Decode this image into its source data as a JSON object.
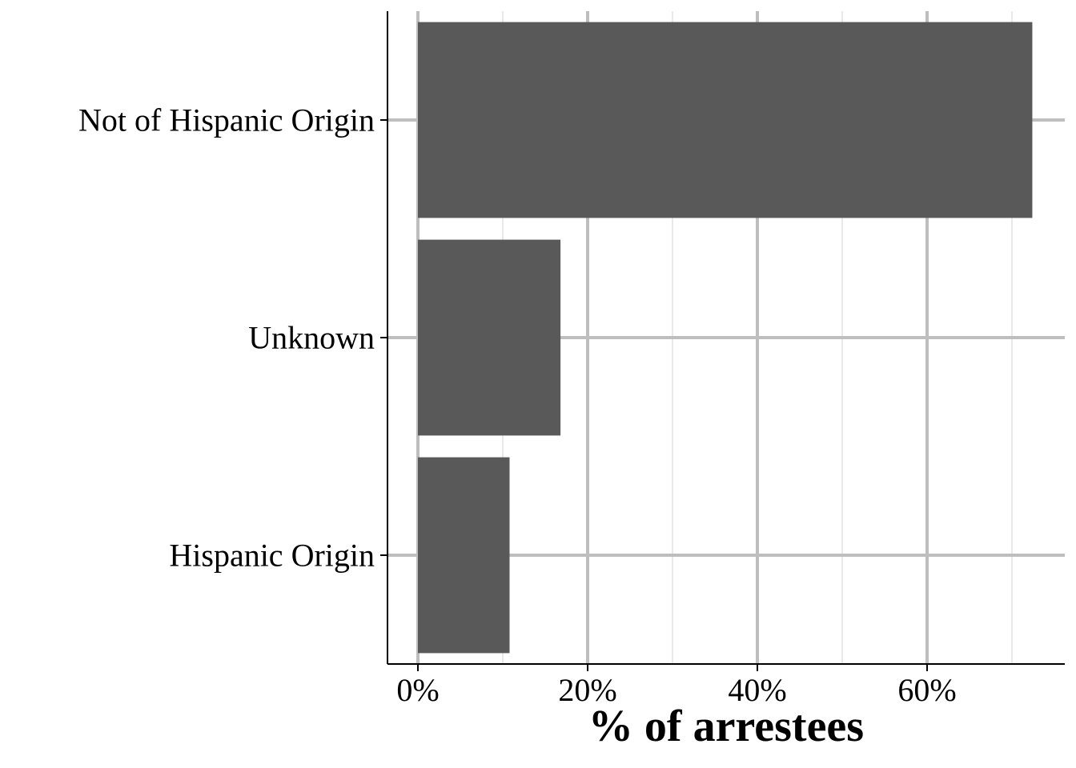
{
  "chart_data": {
    "type": "bar",
    "orientation": "horizontal",
    "categories": [
      "Not of Hispanic Origin",
      "Unknown",
      "Hispanic Origin"
    ],
    "values": [
      72.4,
      16.8,
      10.8
    ],
    "value_unit": "%",
    "xlabel": "% of arrestees",
    "ylabel": "",
    "title": "",
    "xlim": [
      -3.5,
      76.2
    ],
    "xticks": [
      0,
      20,
      40,
      60
    ],
    "xtick_labels": [
      "0%",
      "20%",
      "40%",
      "60%"
    ],
    "grid": true,
    "legend": "none",
    "colors": {
      "bar": "#595959",
      "grid_major": "#bebebe",
      "grid_minor": "#d3d3d3",
      "axis": "#000000",
      "background": "#ffffff"
    }
  }
}
